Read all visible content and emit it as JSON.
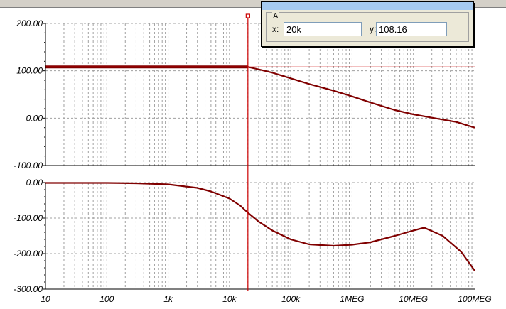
{
  "chart_data": [
    {
      "type": "line",
      "xscale": "log",
      "xlim": [
        10,
        100000000
      ],
      "ylim": [
        -100,
        200
      ],
      "ytick_labels": [
        "200.00",
        "100.00",
        "0.00",
        "-100.00"
      ],
      "series": [
        {
          "color": "#800000",
          "x": [
            10,
            100,
            1000,
            10000,
            20000,
            30000,
            50000,
            100000,
            200000,
            500000,
            1000000,
            2000000,
            5000000,
            10000000,
            20000000,
            50000000,
            100000000
          ],
          "y": [
            108.16,
            108.16,
            108.16,
            108.16,
            108.16,
            103,
            96,
            84,
            72,
            58,
            46,
            33,
            17,
            8,
            1,
            -8,
            -20
          ]
        }
      ]
    },
    {
      "type": "line",
      "xscale": "log",
      "xlim": [
        10,
        100000000
      ],
      "ylim": [
        -300,
        0
      ],
      "ytick_labels": [
        "0.00",
        "-100.00",
        "-200.00",
        "-300.00"
      ],
      "series": [
        {
          "color": "#800000",
          "x": [
            10,
            100,
            300,
            1000,
            3000,
            5000,
            10000,
            15000,
            20000,
            30000,
            50000,
            100000,
            200000,
            500000,
            1000000,
            2000000,
            5000000,
            10000000,
            15000000,
            30000000,
            60000000,
            100000000
          ],
          "y": [
            -1,
            -1,
            -2,
            -5,
            -15,
            -25,
            -45,
            -65,
            -85,
            -110,
            -135,
            -160,
            -174,
            -178,
            -175,
            -168,
            -150,
            -135,
            -127,
            -150,
            -195,
            -248
          ]
        }
      ]
    }
  ],
  "x_tick_labels": [
    "10",
    "100",
    "1k",
    "10k",
    "100k",
    "1MEG",
    "10MEG",
    "100MEG"
  ],
  "cursor": {
    "x_value": 20000,
    "group_label": "A",
    "x_label": "x:",
    "y_label": "y:",
    "x_readout": "20k",
    "y_readout": "108.16",
    "color": "#cc0000"
  },
  "colors": {
    "trace": "#800000",
    "cursor": "#cc0000",
    "grid": "#a0a0a0"
  }
}
